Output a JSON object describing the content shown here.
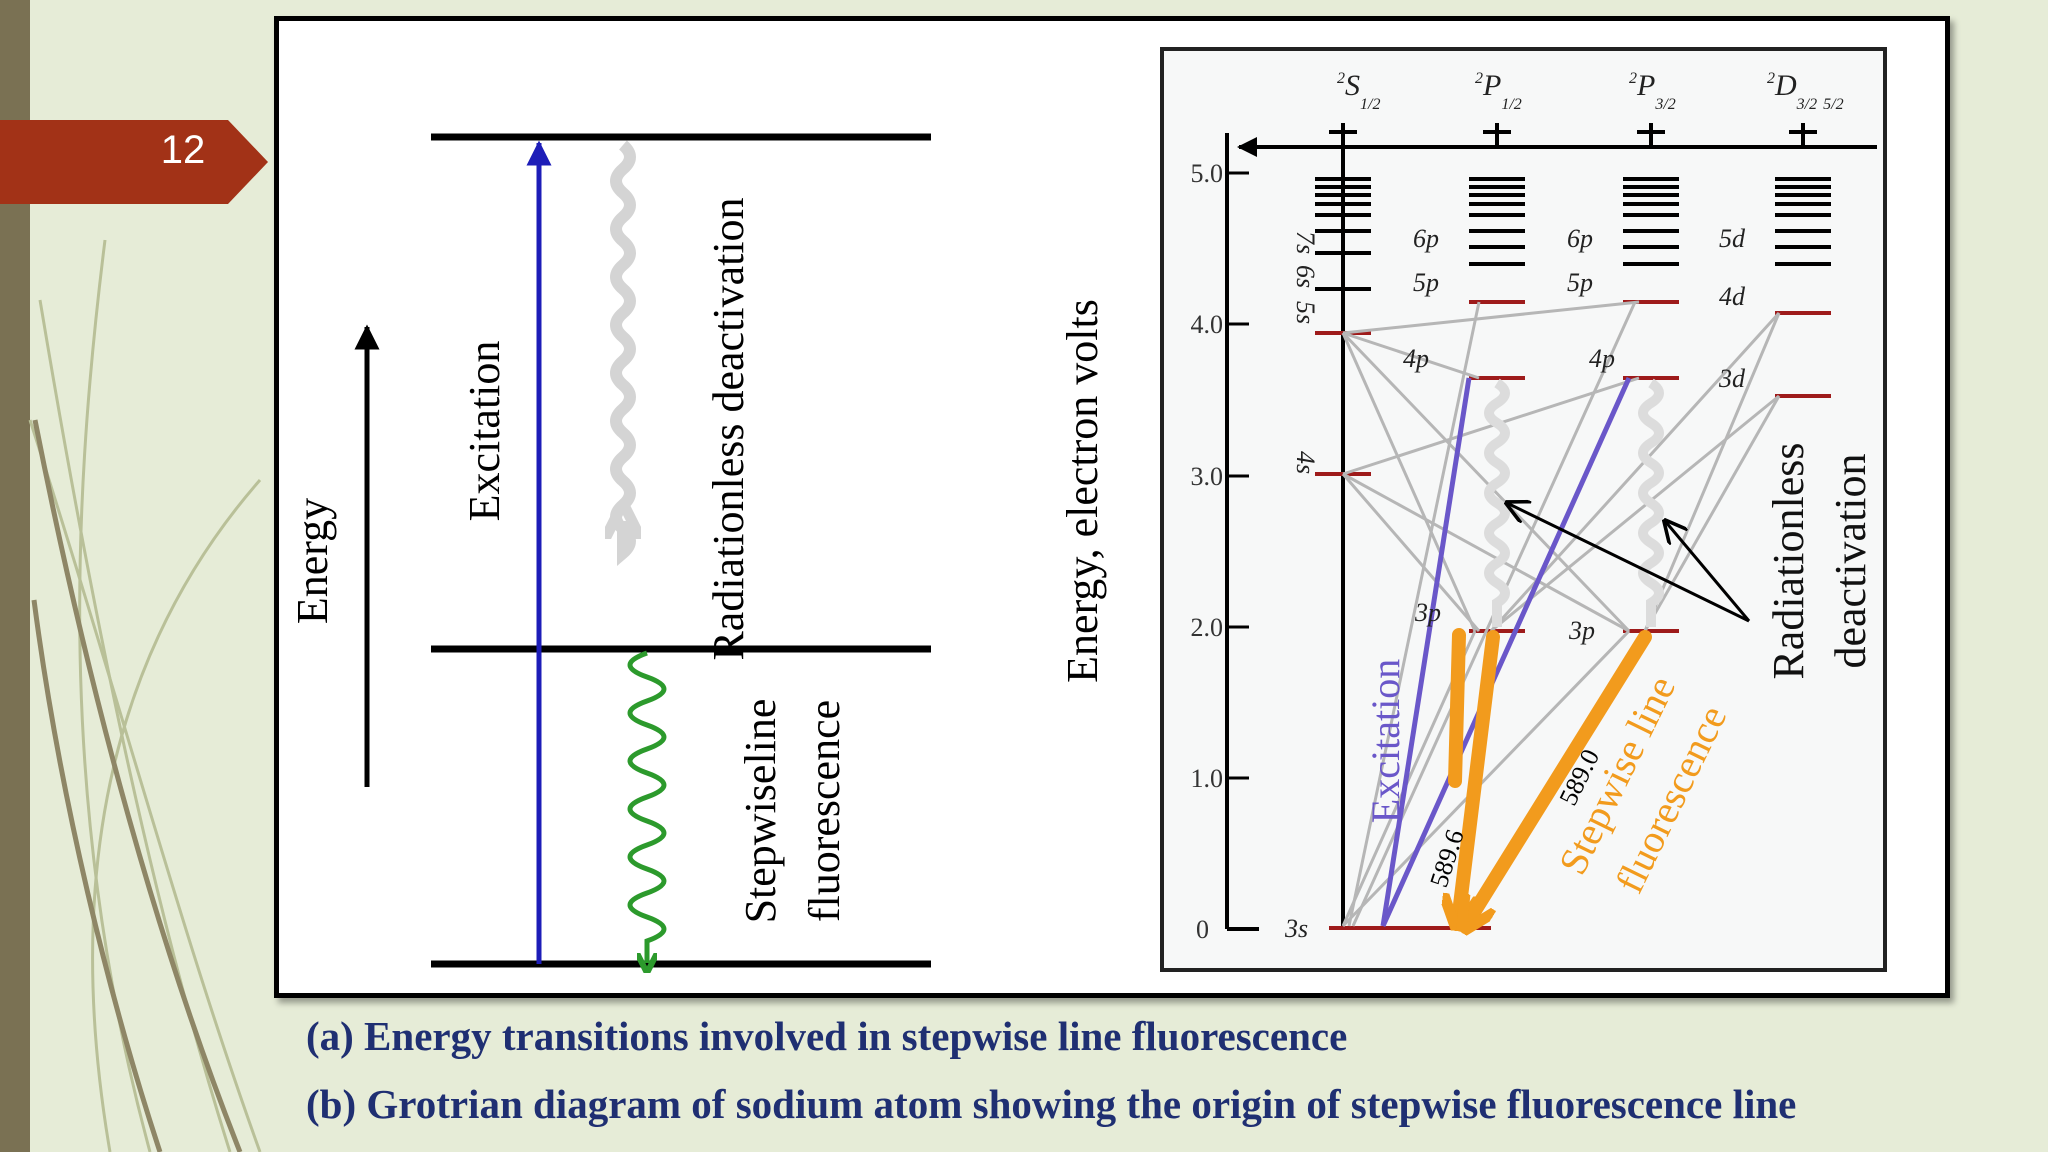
{
  "slide": {
    "number": "12",
    "colors": {
      "accent_red": "#a23217",
      "left_bar": "#7a7153",
      "background": "#e6ecd7",
      "caption": "#1f2f72"
    }
  },
  "diagram_a": {
    "energy_label": "Energy",
    "excitation_label": "Excitation",
    "radiationless_label": "Radiationless deactivation",
    "fluorescence_line1": "Stepwiseline",
    "fluorescence_line2": "fluorescence"
  },
  "diagram_b": {
    "ylabel": "Energy, electron volts",
    "yticks": [
      "5.0",
      "4.0",
      "3.0",
      "2.0",
      "1.0",
      "0"
    ],
    "terms": {
      "s": {
        "sup": "2",
        "letter": "S",
        "sub": "1/2"
      },
      "p1": {
        "sup": "2",
        "letter": "P",
        "sub": "1/2"
      },
      "p3": {
        "sup": "2",
        "letter": "P",
        "sub": "3/2"
      },
      "d": {
        "sup": "2",
        "letter": "D",
        "sub": "3/2",
        "sub2": "5/2"
      }
    },
    "levels": {
      "s_7s": "7s",
      "s_6s": "6s",
      "s_5s": "5s",
      "s_4s": "4s",
      "s_3s": "3s",
      "p1_6p": "6p",
      "p1_5p": "5p",
      "p1_4p": "4p",
      "p1_3p": "3p",
      "p3_6p": "6p",
      "p3_5p": "5p",
      "p3_4p": "4p",
      "p3_3p": "3p",
      "d_5d": "5d",
      "d_4d": "4d",
      "d_3d": "3d"
    },
    "excitation_label": "Excitation",
    "wavelength_1": "589.6",
    "wavelength_2": "589.0",
    "fluorescence_line1": "Stepwise line",
    "fluorescence_line2": "fluorescence",
    "radiationless_line1": "Radiationless",
    "radiationless_line2": "deactivation",
    "colors": {
      "excitation": "#6a57c9",
      "fluorescence": "#f29b1d",
      "level": "#9e1b1b"
    }
  },
  "captions": {
    "a": "(a) Energy transitions involved in stepwise line fluorescence",
    "b": "(b) Grotrian diagram of sodium atom showing the origin of stepwise fluorescence line"
  }
}
